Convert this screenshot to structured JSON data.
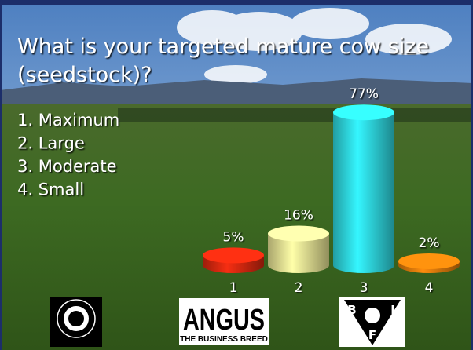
{
  "chart_data": {
    "type": "bar",
    "title": [
      "What is your targeted mature cow size",
      "(seedstock)?"
    ],
    "options": [
      "1. Maximum",
      "2. Large",
      "3. Moderate",
      "4. Small"
    ],
    "categories": [
      "1",
      "2",
      "3",
      "4"
    ],
    "values": [
      5,
      16,
      77,
      2
    ],
    "value_labels": [
      "5%",
      "16%",
      "77%",
      "2%"
    ],
    "colors": [
      "#e02a10",
      "#f2ec9a",
      "#30e0e8",
      "#e8800c"
    ]
  },
  "logos": {
    "angus": "ANGUS",
    "angus_tagline": "THE BUSINESS BREED",
    "bif": [
      "B",
      "I",
      "F"
    ]
  }
}
